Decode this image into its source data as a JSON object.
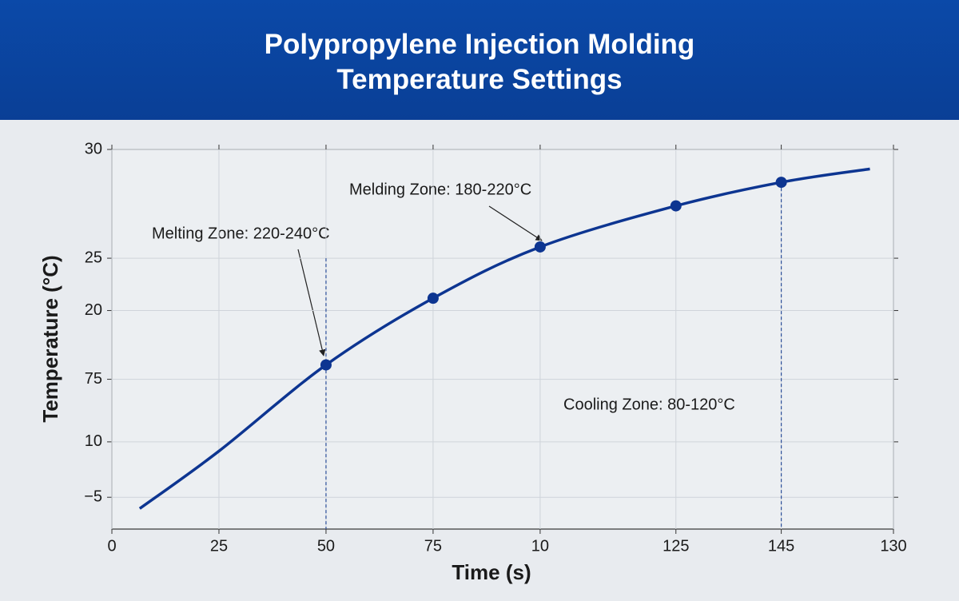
{
  "chart_data": {
    "type": "line",
    "title": "Polypropylene Injection Molding Temperature Settings",
    "x_label": "Time (s)",
    "y_label": "Temperature (°C)",
    "xlim": [
      0,
      182.5
    ],
    "ylim": [
      -7,
      30
    ],
    "xticks": [
      0,
      25,
      50,
      75,
      {
        "value": 100,
        "label": "10"
      },
      {
        "value": 131.7,
        "label": "125"
      },
      {
        "value": 156.3,
        "label": "145"
      },
      {
        "value": 182.5,
        "label": "130"
      }
    ],
    "yticks": [
      30,
      {
        "value": 19.4,
        "label": "25"
      },
      {
        "value": 14.3,
        "label": "20"
      },
      {
        "value": 7.6,
        "label": "75"
      },
      {
        "value": 1.5,
        "label": "10"
      },
      {
        "value": -3.9,
        "label": "−5"
      }
    ],
    "grid": true,
    "series": [
      {
        "color": "#0d3591",
        "x": [
          6.5,
          25,
          50,
          75,
          100,
          131.7,
          156.3,
          177
        ],
        "values": [
          -5.0,
          0.6,
          9.0,
          15.5,
          20.5,
          24.5,
          26.8,
          28.1
        ]
      },
      {
        "color": "#0d3591",
        "markers_only": true,
        "x": [
          50,
          75,
          100,
          131.7,
          156.3
        ],
        "values": [
          9.0,
          15.5,
          20.5,
          24.5,
          26.8
        ]
      }
    ],
    "vlines": [
      {
        "x": 50,
        "top": 19.4
      },
      {
        "x": 156.3,
        "top": 26.8
      }
    ],
    "annotations": [
      {
        "text": "Melting Zone: 220-240°C"
      },
      {
        "text": "Melding Zone: 180-220°C"
      },
      {
        "text": "Cooling Zone: 80-120°C"
      }
    ]
  }
}
